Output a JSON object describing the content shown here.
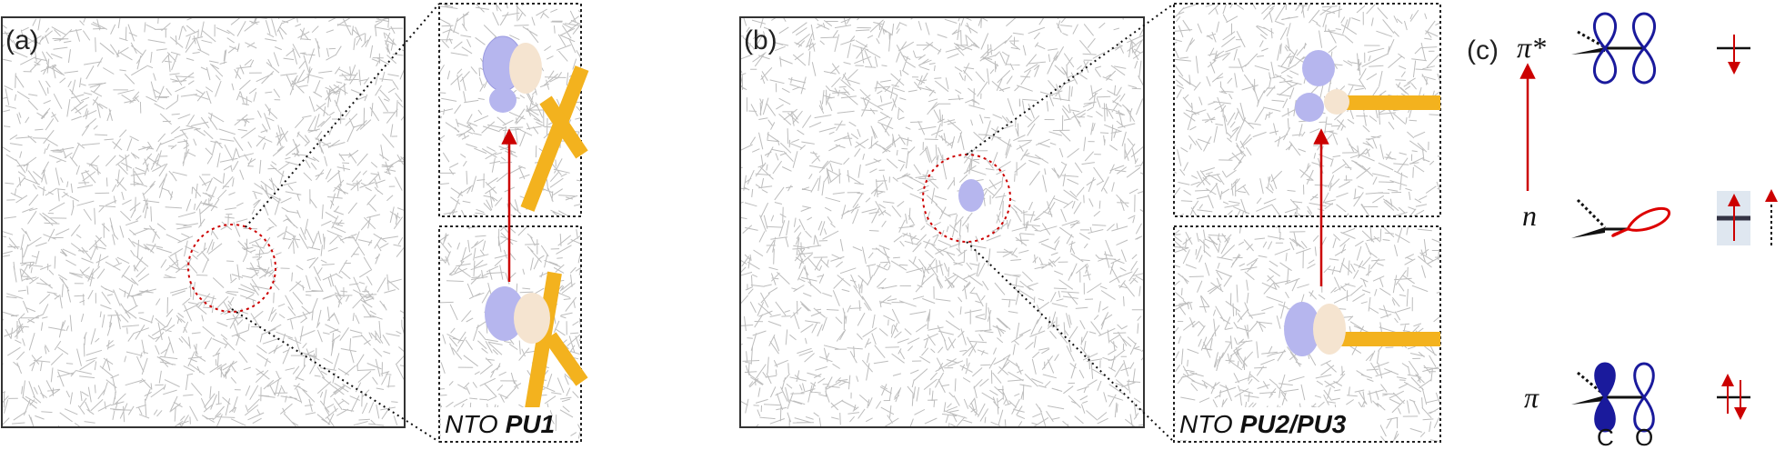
{
  "panels": [
    {
      "label": "(a)",
      "caption_prefix": "NTO",
      "caption_bold": "PU1"
    },
    {
      "label": "(b)",
      "caption_prefix": "NTO",
      "caption_bold": "PU2/PU3"
    }
  ],
  "panel_c": {
    "label": "(c)",
    "levels": [
      "π*",
      "n",
      "π"
    ],
    "atoms": [
      "C",
      "O"
    ]
  }
}
